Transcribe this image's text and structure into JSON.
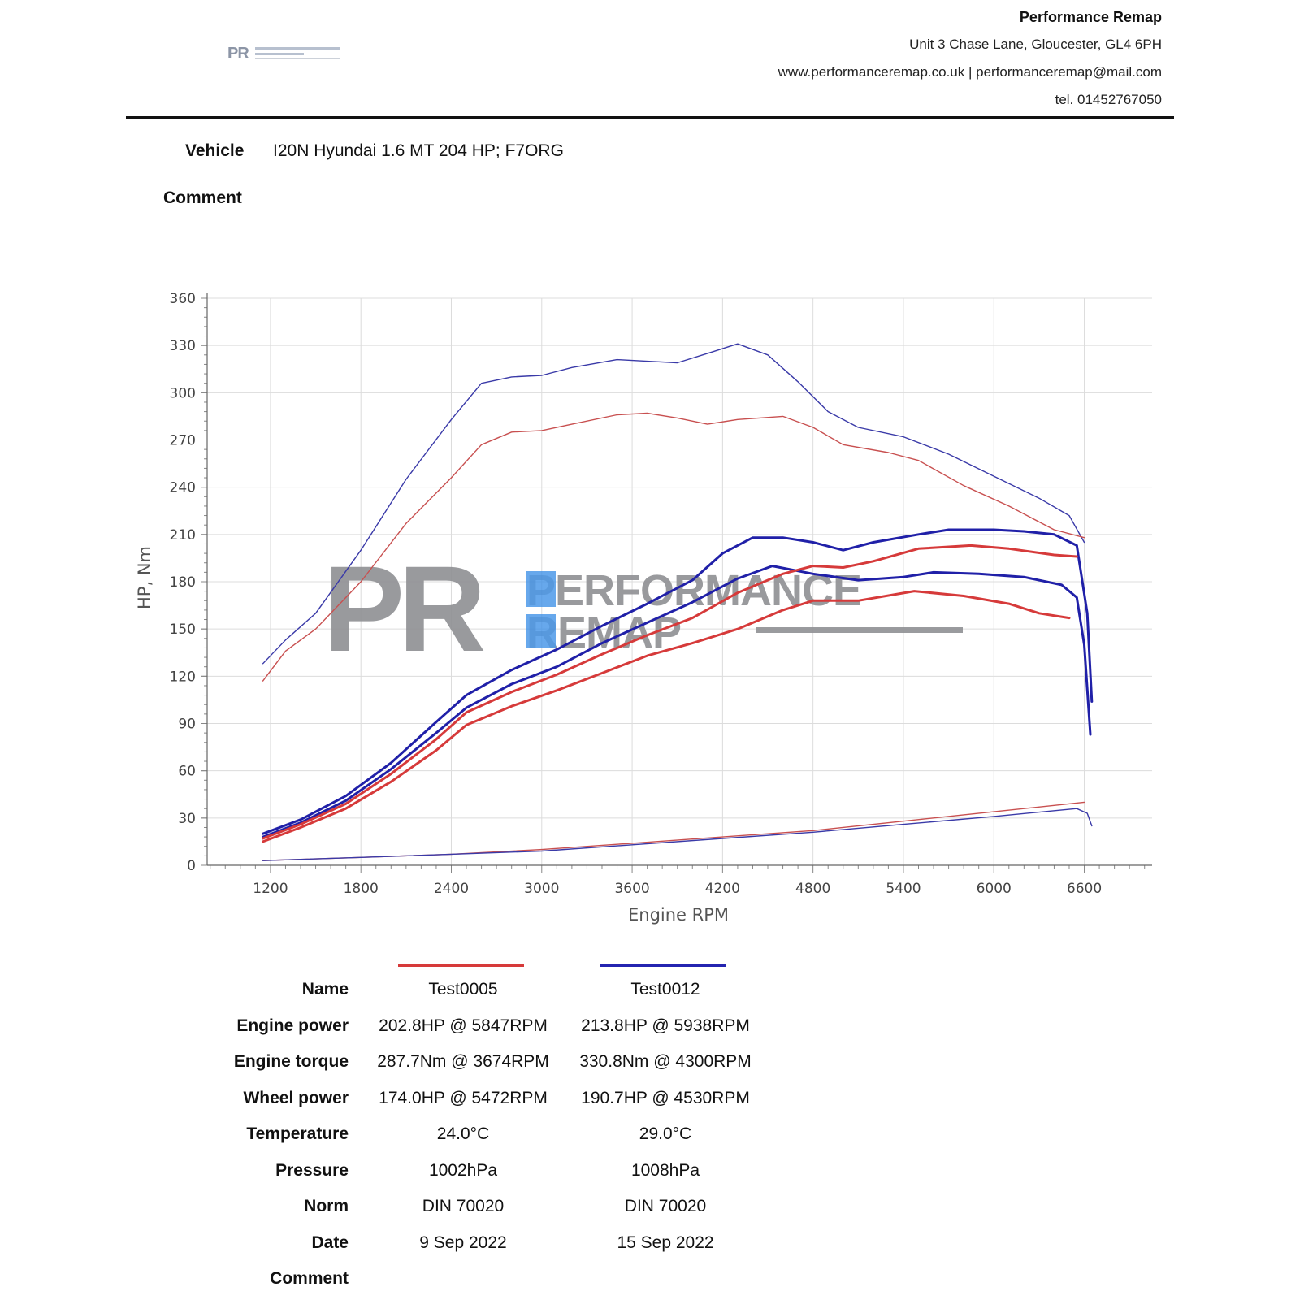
{
  "header": {
    "company_name": "Performance Remap",
    "address": "Unit 3 Chase Lane, Gloucester, GL4 6PH",
    "web_email": "www.performanceremap.co.uk | performanceremap@mail.com",
    "phone": "tel. 01452767050",
    "logo_icon": "pr-performance-remap-logo"
  },
  "vehicle": {
    "label": "Vehicle",
    "value": "I20N Hyundai 1.6 MT 204 HP; F7ORG"
  },
  "comment": {
    "label": "Comment"
  },
  "watermark": {
    "letters": "PR",
    "line1": "PERFORMANCE",
    "line2": "REMAP"
  },
  "chart_data": {
    "type": "line",
    "xlabel": "Engine RPM",
    "ylabel": "HP, Nm",
    "xlim": [
      780,
      7050
    ],
    "ylim": [
      0,
      360
    ],
    "x_ticks": [
      1200,
      1800,
      2400,
      3000,
      3600,
      4200,
      4800,
      5400,
      6000,
      6600
    ],
    "y_ticks": [
      0,
      30,
      60,
      90,
      120,
      150,
      180,
      210,
      240,
      270,
      300,
      330,
      360
    ],
    "grid": true,
    "colors": {
      "Test0005": "#d63a3a",
      "Test0012": "#2424b0"
    },
    "series": [
      {
        "name": "Test0012",
        "kind": "engine torque",
        "color": "#3a3aa8",
        "width": 1.4,
        "points": [
          [
            1150,
            128
          ],
          [
            1300,
            143
          ],
          [
            1500,
            160
          ],
          [
            1800,
            200
          ],
          [
            2100,
            245
          ],
          [
            2400,
            283
          ],
          [
            2600,
            306
          ],
          [
            2800,
            310
          ],
          [
            3000,
            311
          ],
          [
            3200,
            316
          ],
          [
            3500,
            321
          ],
          [
            3700,
            320
          ],
          [
            3900,
            319
          ],
          [
            4100,
            325
          ],
          [
            4300,
            331
          ],
          [
            4500,
            324
          ],
          [
            4700,
            307
          ],
          [
            4900,
            288
          ],
          [
            5100,
            278
          ],
          [
            5400,
            272
          ],
          [
            5700,
            261
          ],
          [
            6000,
            247
          ],
          [
            6300,
            233
          ],
          [
            6500,
            222
          ],
          [
            6600,
            205
          ]
        ]
      },
      {
        "name": "Test0005",
        "kind": "engine torque",
        "color": "#c85050",
        "width": 1.4,
        "points": [
          [
            1150,
            117
          ],
          [
            1300,
            136
          ],
          [
            1500,
            150
          ],
          [
            1800,
            180
          ],
          [
            2100,
            217
          ],
          [
            2400,
            246
          ],
          [
            2600,
            267
          ],
          [
            2800,
            275
          ],
          [
            3000,
            276
          ],
          [
            3200,
            280
          ],
          [
            3500,
            286
          ],
          [
            3700,
            287
          ],
          [
            3900,
            284
          ],
          [
            4100,
            280
          ],
          [
            4300,
            283
          ],
          [
            4600,
            285
          ],
          [
            4800,
            278
          ],
          [
            5000,
            267
          ],
          [
            5300,
            262
          ],
          [
            5500,
            257
          ],
          [
            5800,
            241
          ],
          [
            6100,
            228
          ],
          [
            6400,
            213
          ],
          [
            6600,
            208
          ]
        ]
      },
      {
        "name": "Test0012",
        "kind": "engine power",
        "color": "#2020a8",
        "width": 3,
        "points": [
          [
            1150,
            20
          ],
          [
            1400,
            29
          ],
          [
            1700,
            44
          ],
          [
            2000,
            65
          ],
          [
            2300,
            91
          ],
          [
            2500,
            108
          ],
          [
            2800,
            124
          ],
          [
            3100,
            137
          ],
          [
            3400,
            152
          ],
          [
            3700,
            166
          ],
          [
            4000,
            181
          ],
          [
            4200,
            198
          ],
          [
            4400,
            208
          ],
          [
            4600,
            208
          ],
          [
            4800,
            205
          ],
          [
            5000,
            200
          ],
          [
            5200,
            205
          ],
          [
            5500,
            210
          ],
          [
            5700,
            213
          ],
          [
            6000,
            213
          ],
          [
            6200,
            212
          ],
          [
            6400,
            210
          ],
          [
            6550,
            203
          ],
          [
            6620,
            160
          ],
          [
            6650,
            104
          ]
        ]
      },
      {
        "name": "Test0012",
        "kind": "wheel power",
        "color": "#2020a8",
        "width": 3,
        "points": [
          [
            1150,
            18
          ],
          [
            1400,
            27
          ],
          [
            1700,
            41
          ],
          [
            2000,
            61
          ],
          [
            2300,
            84
          ],
          [
            2500,
            100
          ],
          [
            2800,
            115
          ],
          [
            3100,
            126
          ],
          [
            3400,
            141
          ],
          [
            3700,
            154
          ],
          [
            4000,
            167
          ],
          [
            4300,
            182
          ],
          [
            4530,
            190
          ],
          [
            4800,
            185
          ],
          [
            5100,
            181
          ],
          [
            5400,
            183
          ],
          [
            5600,
            186
          ],
          [
            5900,
            185
          ],
          [
            6200,
            183
          ],
          [
            6450,
            178
          ],
          [
            6550,
            170
          ],
          [
            6600,
            140
          ],
          [
            6640,
            83
          ]
        ]
      },
      {
        "name": "Test0005",
        "kind": "engine power",
        "color": "#d63a3a",
        "width": 3,
        "points": [
          [
            1150,
            17
          ],
          [
            1400,
            26
          ],
          [
            1700,
            39
          ],
          [
            2000,
            58
          ],
          [
            2300,
            80
          ],
          [
            2500,
            97
          ],
          [
            2800,
            110
          ],
          [
            3100,
            121
          ],
          [
            3400,
            134
          ],
          [
            3700,
            146
          ],
          [
            4000,
            157
          ],
          [
            4300,
            173
          ],
          [
            4600,
            185
          ],
          [
            4800,
            190
          ],
          [
            5000,
            189
          ],
          [
            5200,
            193
          ],
          [
            5500,
            201
          ],
          [
            5847,
            203
          ],
          [
            6100,
            201
          ],
          [
            6400,
            197
          ],
          [
            6550,
            196
          ]
        ]
      },
      {
        "name": "Test0005",
        "kind": "wheel power",
        "color": "#d63a3a",
        "width": 3,
        "points": [
          [
            1150,
            15
          ],
          [
            1400,
            24
          ],
          [
            1700,
            36
          ],
          [
            2000,
            53
          ],
          [
            2300,
            73
          ],
          [
            2500,
            89
          ],
          [
            2800,
            101
          ],
          [
            3100,
            111
          ],
          [
            3400,
            122
          ],
          [
            3700,
            133
          ],
          [
            4000,
            141
          ],
          [
            4300,
            150
          ],
          [
            4600,
            162
          ],
          [
            4800,
            168
          ],
          [
            5100,
            168
          ],
          [
            5472,
            174
          ],
          [
            5800,
            171
          ],
          [
            6100,
            166
          ],
          [
            6300,
            160
          ],
          [
            6500,
            157
          ]
        ]
      },
      {
        "name": "Test0005",
        "kind": "losses",
        "color": "#c85050",
        "width": 1.4,
        "points": [
          [
            1150,
            3
          ],
          [
            1800,
            5
          ],
          [
            2400,
            7
          ],
          [
            3000,
            10
          ],
          [
            3600,
            14
          ],
          [
            4200,
            18
          ],
          [
            4800,
            22
          ],
          [
            5400,
            28
          ],
          [
            6000,
            34
          ],
          [
            6600,
            40
          ]
        ]
      },
      {
        "name": "Test0012",
        "kind": "losses",
        "color": "#3a3aa8",
        "width": 1.4,
        "points": [
          [
            1150,
            3
          ],
          [
            1800,
            5
          ],
          [
            2400,
            7
          ],
          [
            3000,
            9
          ],
          [
            3600,
            13
          ],
          [
            4200,
            17
          ],
          [
            4800,
            21
          ],
          [
            5400,
            26
          ],
          [
            6000,
            31
          ],
          [
            6550,
            36
          ],
          [
            6620,
            33
          ],
          [
            6650,
            25
          ]
        ]
      }
    ]
  },
  "results": {
    "legend": [
      {
        "name": "Test0005",
        "color": "#d63a3a"
      },
      {
        "name": "Test0012",
        "color": "#2424b0"
      }
    ],
    "rows": [
      {
        "label": "Name",
        "v1": "Test0005",
        "v2": "Test0012"
      },
      {
        "label": "Engine power",
        "v1": "202.8HP @ 5847RPM",
        "v2": "213.8HP @ 5938RPM"
      },
      {
        "label": "Engine torque",
        "v1": "287.7Nm @ 3674RPM",
        "v2": "330.8Nm @ 4300RPM"
      },
      {
        "label": "Wheel power",
        "v1": "174.0HP @ 5472RPM",
        "v2": "190.7HP @ 4530RPM"
      },
      {
        "label": "Temperature",
        "v1": "24.0°C",
        "v2": "29.0°C"
      },
      {
        "label": "Pressure",
        "v1": "1002hPa",
        "v2": "1008hPa"
      },
      {
        "label": "Norm",
        "v1": "DIN 70020",
        "v2": "DIN 70020"
      },
      {
        "label": "Date",
        "v1": "9 Sep 2022",
        "v2": "15 Sep 2022"
      },
      {
        "label": "Comment",
        "v1": "",
        "v2": ""
      }
    ]
  }
}
